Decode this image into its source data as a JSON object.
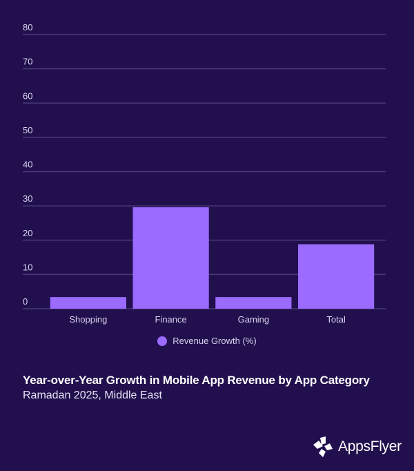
{
  "chart_data": {
    "type": "bar",
    "title": "Year-over-Year Growth in Mobile App Revenue by App Category",
    "subtitle": "Ramadan 2025, Middle East",
    "categories": [
      "Shopping",
      "Finance",
      "Gaming",
      "Total"
    ],
    "series": [
      {
        "name": "Revenue Growth (%)",
        "values": [
          3.4,
          29.6,
          3.4,
          18.8
        ],
        "color": "#9b6bff"
      }
    ],
    "xlabel": "",
    "ylabel": "",
    "ylim": [
      0,
      80
    ],
    "yticks": [
      0,
      10,
      20,
      30,
      40,
      50,
      60,
      70,
      80
    ],
    "grid": true,
    "legend_position": "bottom-center"
  },
  "colors": {
    "background": "#22104e",
    "bar": "#9b6bff",
    "grid": "#4a3a78"
  },
  "branding": {
    "logo_text": "AppsFlyer",
    "logo_icon": "appsflyer-logo-icon"
  }
}
